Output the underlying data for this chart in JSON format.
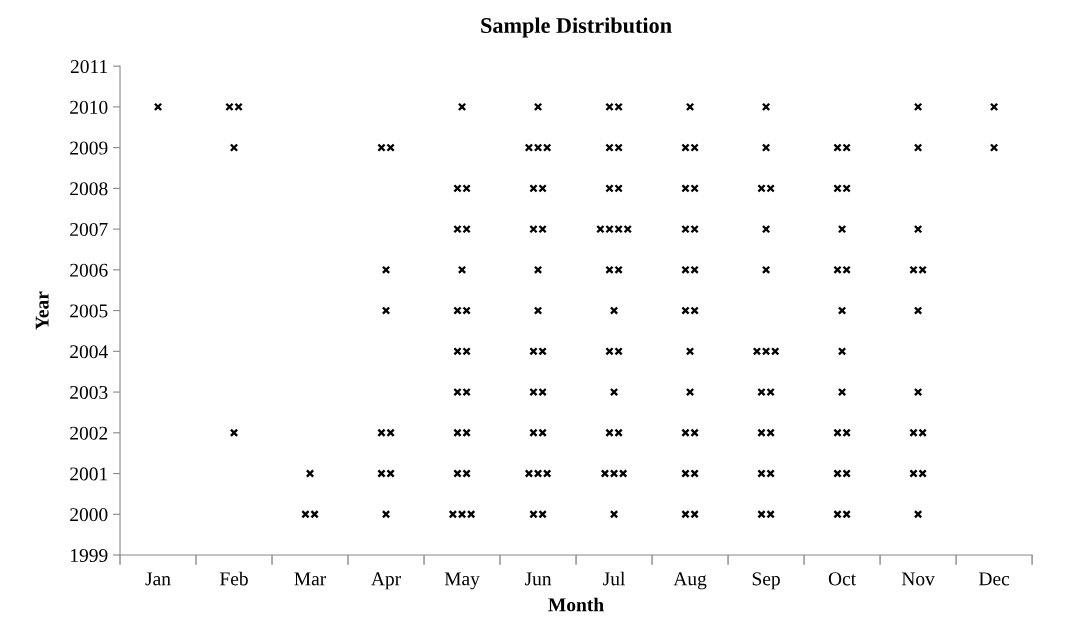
{
  "chart_data": {
    "type": "scatter",
    "title": "Sample Distribution",
    "xlabel": "Month",
    "ylabel": "Year",
    "marker": "cross",
    "grid": false,
    "legend": false,
    "categories": [
      "Jan",
      "Feb",
      "Mar",
      "Apr",
      "May",
      "Jun",
      "Jul",
      "Aug",
      "Sep",
      "Oct",
      "Nov",
      "Dec"
    ],
    "ylim": [
      1999,
      2011
    ],
    "yticks": [
      1999,
      2000,
      2001,
      2002,
      2003,
      2004,
      2005,
      2006,
      2007,
      2008,
      2009,
      2010,
      2011
    ],
    "series": [
      {
        "color": "#000000",
        "x": [
          "Jan",
          "Feb",
          "Feb",
          "May",
          "Jun",
          "Jul",
          "Jul",
          "Aug",
          "Sep",
          "Nov",
          "Dec"
        ],
        "values": [
          2010,
          2010,
          2010,
          2010,
          2010,
          2010,
          2010,
          2010,
          2010,
          2010,
          2010
        ]
      },
      {
        "color": "#000000",
        "x": [
          "Feb",
          "Apr",
          "Apr",
          "Jun",
          "Jun",
          "Jun",
          "Jul",
          "Jul",
          "Aug",
          "Aug",
          "Sep",
          "Oct",
          "Oct",
          "Nov",
          "Dec"
        ],
        "values": [
          2009,
          2009,
          2009,
          2009,
          2009,
          2009,
          2009,
          2009,
          2009,
          2009,
          2009,
          2009,
          2009,
          2009,
          2009
        ]
      },
      {
        "color": "#000000",
        "x": [
          "May",
          "May",
          "Jun",
          "Jun",
          "Jul",
          "Jul",
          "Aug",
          "Aug",
          "Sep",
          "Sep",
          "Oct",
          "Oct"
        ],
        "values": [
          2008,
          2008,
          2008,
          2008,
          2008,
          2008,
          2008,
          2008,
          2008,
          2008,
          2008,
          2008
        ]
      },
      {
        "color": "#000000",
        "x": [
          "May",
          "May",
          "Jun",
          "Jun",
          "Jul",
          "Jul",
          "Jul",
          "Jul",
          "Aug",
          "Aug",
          "Sep",
          "Oct",
          "Nov"
        ],
        "values": [
          2007,
          2007,
          2007,
          2007,
          2007,
          2007,
          2007,
          2007,
          2007,
          2007,
          2007,
          2007,
          2007
        ]
      },
      {
        "color": "#000000",
        "x": [
          "Apr",
          "May",
          "Jun",
          "Jul",
          "Jul",
          "Aug",
          "Aug",
          "Sep",
          "Oct",
          "Oct",
          "Nov",
          "Nov"
        ],
        "values": [
          2006,
          2006,
          2006,
          2006,
          2006,
          2006,
          2006,
          2006,
          2006,
          2006,
          2006,
          2006
        ]
      },
      {
        "color": "#000000",
        "x": [
          "Apr",
          "May",
          "May",
          "Jun",
          "Jul",
          "Aug",
          "Aug",
          "Oct",
          "Nov"
        ],
        "values": [
          2005,
          2005,
          2005,
          2005,
          2005,
          2005,
          2005,
          2005,
          2005
        ]
      },
      {
        "color": "#000000",
        "x": [
          "May",
          "May",
          "Jun",
          "Jun",
          "Jul",
          "Jul",
          "Aug",
          "Sep",
          "Sep",
          "Sep",
          "Oct"
        ],
        "values": [
          2004,
          2004,
          2004,
          2004,
          2004,
          2004,
          2004,
          2004,
          2004,
          2004,
          2004
        ]
      },
      {
        "color": "#000000",
        "x": [
          "May",
          "May",
          "Jun",
          "Jun",
          "Jul",
          "Aug",
          "Sep",
          "Sep",
          "Oct",
          "Nov"
        ],
        "values": [
          2003,
          2003,
          2003,
          2003,
          2003,
          2003,
          2003,
          2003,
          2003,
          2003
        ]
      },
      {
        "color": "#000000",
        "x": [
          "Feb",
          "Apr",
          "Apr",
          "May",
          "May",
          "Jun",
          "Jun",
          "Jul",
          "Jul",
          "Aug",
          "Aug",
          "Sep",
          "Sep",
          "Oct",
          "Oct",
          "Nov",
          "Nov"
        ],
        "values": [
          2002,
          2002,
          2002,
          2002,
          2002,
          2002,
          2002,
          2002,
          2002,
          2002,
          2002,
          2002,
          2002,
          2002,
          2002,
          2002,
          2002
        ]
      },
      {
        "color": "#000000",
        "x": [
          "Mar",
          "Apr",
          "Apr",
          "May",
          "May",
          "Jun",
          "Jun",
          "Jun",
          "Jul",
          "Jul",
          "Jul",
          "Aug",
          "Aug",
          "Sep",
          "Sep",
          "Oct",
          "Oct",
          "Nov",
          "Nov"
        ],
        "values": [
          2001,
          2001,
          2001,
          2001,
          2001,
          2001,
          2001,
          2001,
          2001,
          2001,
          2001,
          2001,
          2001,
          2001,
          2001,
          2001,
          2001,
          2001,
          2001
        ]
      },
      {
        "color": "#000000",
        "x": [
          "Mar",
          "Mar",
          "Apr",
          "May",
          "May",
          "May",
          "Jun",
          "Jun",
          "Jul",
          "Aug",
          "Aug",
          "Sep",
          "Sep",
          "Oct",
          "Oct",
          "Nov"
        ],
        "values": [
          2000,
          2000,
          2000,
          2000,
          2000,
          2000,
          2000,
          2000,
          2000,
          2000,
          2000,
          2000,
          2000,
          2000,
          2000,
          2000
        ]
      }
    ]
  }
}
